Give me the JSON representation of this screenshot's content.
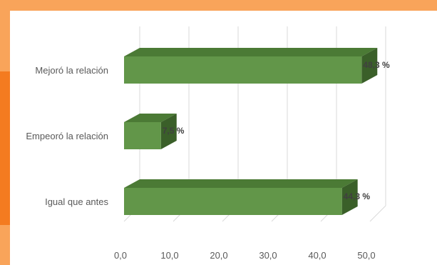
{
  "chart_data": {
    "type": "bar",
    "orientation": "horizontal",
    "style": "3d",
    "categories": [
      "Mejoró la relación",
      "Empeoró la relación",
      "Igual que antes"
    ],
    "values": [
      48.3,
      7.5,
      44.3
    ],
    "data_labels": [
      "48,3 %",
      "7,5 %",
      "44,3 %"
    ],
    "x_ticks": [
      "0,0",
      "10,0",
      "20,0",
      "30,0",
      "40,0",
      "50,0"
    ],
    "xlim": [
      0,
      50
    ],
    "grid": true,
    "title": "",
    "xlabel": "",
    "ylabel": "",
    "colors": {
      "bar_front": "#629649",
      "bar_top": "#4b7a35",
      "bar_side": "#3a5f29",
      "frame": "#f9a45a",
      "frame_accent": "#f47b20",
      "grid": "#d9d9d9",
      "text": "#595959"
    }
  }
}
